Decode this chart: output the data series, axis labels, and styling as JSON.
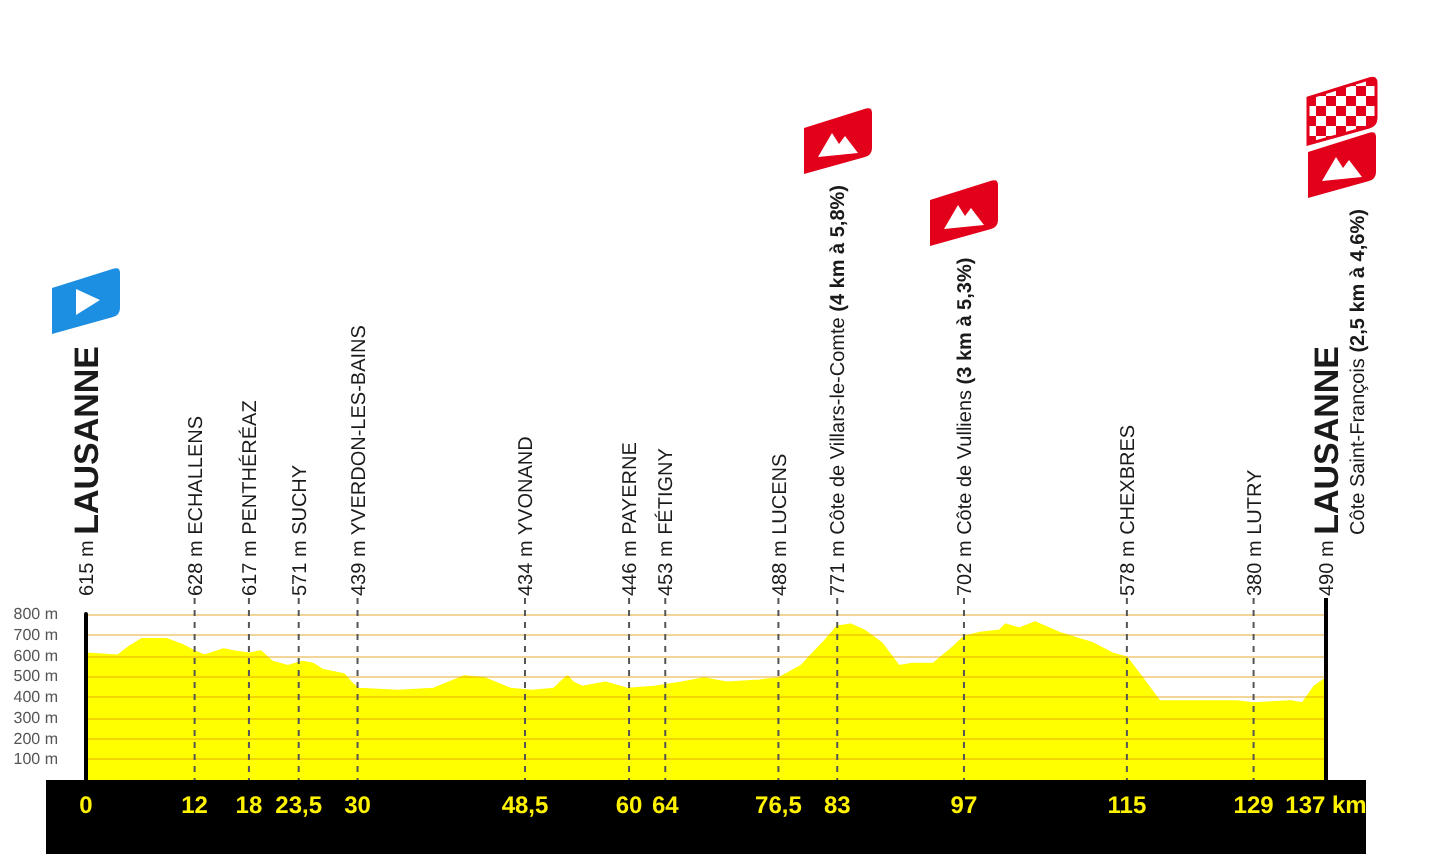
{
  "chart_data": {
    "type": "area",
    "color": "#ffff00",
    "x": [
      0,
      3.5,
      4.7,
      6.2,
      8.9,
      10.7,
      12,
      13.1,
      15.2,
      16.3,
      18,
      19.3,
      20.6,
      22.3,
      23.9,
      25.1,
      26.2,
      28.5,
      29.3,
      30.1,
      34.5,
      38.4,
      41.8,
      44.1,
      46.9,
      49.3,
      51.7,
      52.4,
      53.2,
      53.8,
      54.8,
      57.4,
      59.8,
      62.8,
      65.8,
      68.3,
      70.8,
      74.4,
      76.5,
      79,
      81.4,
      83,
      84.5,
      86,
      87.9,
      89.8,
      91.3,
      93.6,
      95.8,
      97,
      98.8,
      100.9,
      101.6,
      103.1,
      104.9,
      107.5,
      109.7,
      111.2,
      113.4,
      115,
      116.9,
      118.6,
      120.3,
      127.1,
      129,
      133.1,
      134.4,
      135.7,
      137
    ],
    "values": [
      610,
      600,
      640,
      680,
      680,
      650,
      620,
      600,
      630,
      620,
      610,
      620,
      570,
      550,
      570,
      560,
      530,
      510,
      470,
      440,
      430,
      440,
      500,
      490,
      440,
      430,
      440,
      470,
      500,
      470,
      450,
      470,
      440,
      450,
      470,
      490,
      470,
      480,
      490,
      550,
      660,
      740,
      750,
      720,
      660,
      550,
      560,
      560,
      640,
      690,
      710,
      720,
      750,
      730,
      760,
      710,
      680,
      660,
      610,
      590,
      480,
      380,
      380,
      380,
      370,
      380,
      370,
      450,
      490
    ],
    "xlim": [
      0,
      137
    ],
    "xticks": [
      0,
      12,
      18,
      {
        "value": 23.5,
        "label": "23,5"
      },
      30,
      {
        "value": 48.5,
        "label": "48,5"
      },
      60,
      64,
      {
        "value": 76.5,
        "label": "76,5"
      },
      83,
      97,
      115,
      129,
      {
        "value": 137,
        "label": "137 km"
      }
    ],
    "ylim": [
      0,
      800
    ],
    "yticks": [
      {
        "value": 100,
        "label": "100 m"
      },
      {
        "value": 200,
        "label": "200 m"
      },
      {
        "value": 300,
        "label": "300 m"
      },
      {
        "value": 400,
        "label": "400 m"
      },
      {
        "value": 500,
        "label": "500 m"
      },
      {
        "value": 600,
        "label": "600 m"
      },
      {
        "value": 700,
        "label": "700 m"
      },
      {
        "value": 800,
        "label": "800 m"
      }
    ],
    "grid": "y",
    "annotations": [
      "615 m LAUSANNE"
    ],
    "ref_lines": [
      {
        "axis": "x",
        "value": 12,
        "label": "628 m ECHALLENS",
        "line_style": "dashed",
        "color": "#555555"
      },
      {
        "axis": "x",
        "value": 18,
        "label": "617 m PENTHÉRÉAZ",
        "line_style": "dashed",
        "color": "#555555"
      },
      {
        "axis": "x",
        "value": 23.5,
        "label": "571 m SUCHY",
        "line_style": "dashed",
        "color": "#555555"
      },
      {
        "axis": "x",
        "value": 30,
        "label": "439 m YVERDON-LES-BAINS",
        "line_style": "dashed",
        "color": "#555555"
      },
      {
        "axis": "x",
        "value": 48.5,
        "label": "434 m YVONAND",
        "line_style": "dashed",
        "color": "#555555"
      },
      {
        "axis": "x",
        "value": 60,
        "label": "446 m PAYERNE",
        "line_style": "dashed",
        "color": "#555555"
      },
      {
        "axis": "x",
        "value": 64,
        "label": "453 m FÉTIGNY",
        "line_style": "dashed",
        "color": "#555555"
      },
      {
        "axis": "x",
        "value": 76.5,
        "label": "488 m LUCENS",
        "line_style": "dashed",
        "color": "#555555"
      },
      {
        "axis": "x",
        "value": 83,
        "label": "771 m Côte de Villars-le-Comte (4 km à 5,8%)",
        "line_style": "dashed",
        "color": "#555555"
      },
      {
        "axis": "x",
        "value": 97,
        "label": "702 m Côte de Vulliens (3 km à 5,3%)",
        "line_style": "dashed",
        "color": "#555555"
      },
      {
        "axis": "x",
        "value": 115,
        "label": "578 m CHEXBRES",
        "line_style": "dashed",
        "color": "#555555"
      },
      {
        "axis": "x",
        "value": 129,
        "label": "380 m LUTRY",
        "line_style": "dashed",
        "color": "#555555"
      },
      {
        "axis": "x",
        "value": 137,
        "label": "490 m LAUSANNE\nCôte Saint-François (2,5 km à 4,6%)",
        "line_style": "solid",
        "color": "#000000"
      }
    ]
  }
}
